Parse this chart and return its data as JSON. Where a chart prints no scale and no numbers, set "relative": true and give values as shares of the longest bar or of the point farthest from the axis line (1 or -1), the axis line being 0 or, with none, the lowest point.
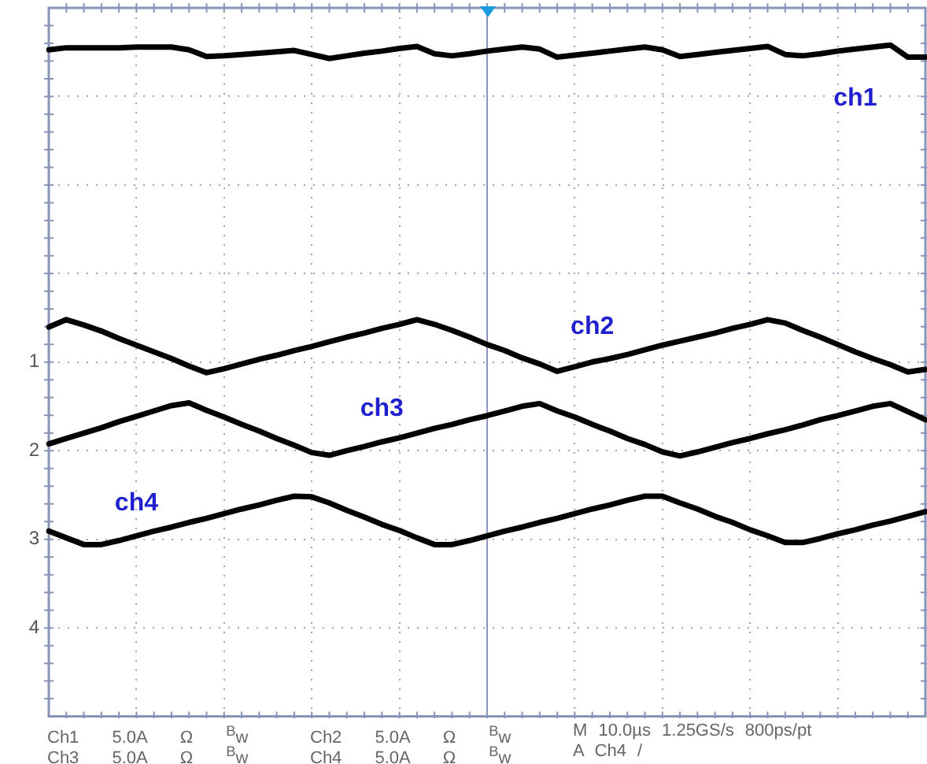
{
  "chart_data": {
    "type": "line",
    "relative": true,
    "grid": true,
    "legend": false,
    "marker": "none",
    "line_style": "solid",
    "categories": [
      null,
      null,
      null,
      null,
      null,
      null,
      null,
      null,
      null,
      null,
      null,
      null,
      null,
      null,
      null,
      null,
      null,
      null,
      null,
      null,
      null,
      null,
      null,
      null,
      null,
      null,
      null,
      null,
      null,
      null,
      null,
      null,
      null,
      null,
      null,
      null,
      null,
      null,
      null,
      null,
      null,
      null,
      null,
      null,
      null,
      null,
      null,
      null,
      null,
      null,
      null
    ],
    "series": [
      {
        "name": "ch1",
        "color": "#000000",
        "values": [
          0.993,
          0.996,
          0.996,
          0.996,
          0.996,
          0.997,
          0.997,
          0.997,
          0.993,
          0.983,
          0.984,
          0.986,
          0.988,
          0.99,
          0.992,
          0.986,
          0.98,
          0.984,
          0.988,
          0.991,
          0.995,
          0.998,
          0.987,
          0.984,
          0.987,
          0.991,
          0.994,
          0.997,
          0.994,
          0.982,
          0.985,
          0.988,
          0.991,
          0.994,
          0.997,
          0.993,
          0.983,
          0.986,
          0.989,
          0.992,
          0.995,
          0.998,
          0.986,
          0.984,
          0.987,
          0.991,
          0.994,
          0.997,
          1.0,
          0.982,
          0.982
        ]
      },
      {
        "name": "ch2",
        "color": "#000000",
        "values": [
          0.58,
          0.591,
          0.583,
          0.574,
          0.563,
          0.553,
          0.543,
          0.533,
          0.522,
          0.512,
          0.518,
          0.525,
          0.532,
          0.538,
          0.545,
          0.551,
          0.558,
          0.565,
          0.571,
          0.578,
          0.584,
          0.591,
          0.584,
          0.575,
          0.565,
          0.554,
          0.545,
          0.534,
          0.525,
          0.514,
          0.521,
          0.528,
          0.533,
          0.539,
          0.546,
          0.553,
          0.559,
          0.565,
          0.571,
          0.578,
          0.584,
          0.591,
          0.586,
          0.575,
          0.565,
          0.554,
          0.543,
          0.533,
          0.524,
          0.513,
          0.517
        ]
      },
      {
        "name": "ch3",
        "color": "#000000",
        "values": [
          0.406,
          0.414,
          0.422,
          0.43,
          0.439,
          0.447,
          0.455,
          0.463,
          0.467,
          0.456,
          0.446,
          0.435,
          0.425,
          0.414,
          0.404,
          0.393,
          0.389,
          0.396,
          0.402,
          0.409,
          0.415,
          0.422,
          0.429,
          0.435,
          0.442,
          0.448,
          0.455,
          0.462,
          0.466,
          0.455,
          0.446,
          0.435,
          0.425,
          0.414,
          0.405,
          0.394,
          0.388,
          0.394,
          0.401,
          0.408,
          0.414,
          0.421,
          0.427,
          0.434,
          0.442,
          0.448,
          0.455,
          0.462,
          0.466,
          0.454,
          0.442
        ]
      },
      {
        "name": "ch4",
        "color": "#000000",
        "values": [
          0.276,
          0.266,
          0.256,
          0.256,
          0.262,
          0.269,
          0.276,
          0.282,
          0.289,
          0.295,
          0.302,
          0.309,
          0.315,
          0.322,
          0.328,
          0.327,
          0.318,
          0.307,
          0.297,
          0.286,
          0.277,
          0.266,
          0.256,
          0.256,
          0.262,
          0.269,
          0.276,
          0.282,
          0.289,
          0.295,
          0.302,
          0.309,
          0.315,
          0.322,
          0.328,
          0.328,
          0.318,
          0.309,
          0.298,
          0.289,
          0.278,
          0.269,
          0.259,
          0.259,
          0.265,
          0.272,
          0.278,
          0.285,
          0.291,
          0.298,
          0.305
        ]
      }
    ],
    "annotations": [
      "Ch1 5.0A Ω $^{B}$w",
      "Ch2 5.0A Ω $^{B}$w",
      "M 10.0µs 1.25GS/s 800ps/pt",
      "Ch3 5.0A Ω $^{B}$w",
      "Ch4 5.0A Ω $^{B}$w",
      "A Ch4 /",
      "1",
      "2",
      "3",
      "4"
    ]
  }
}
